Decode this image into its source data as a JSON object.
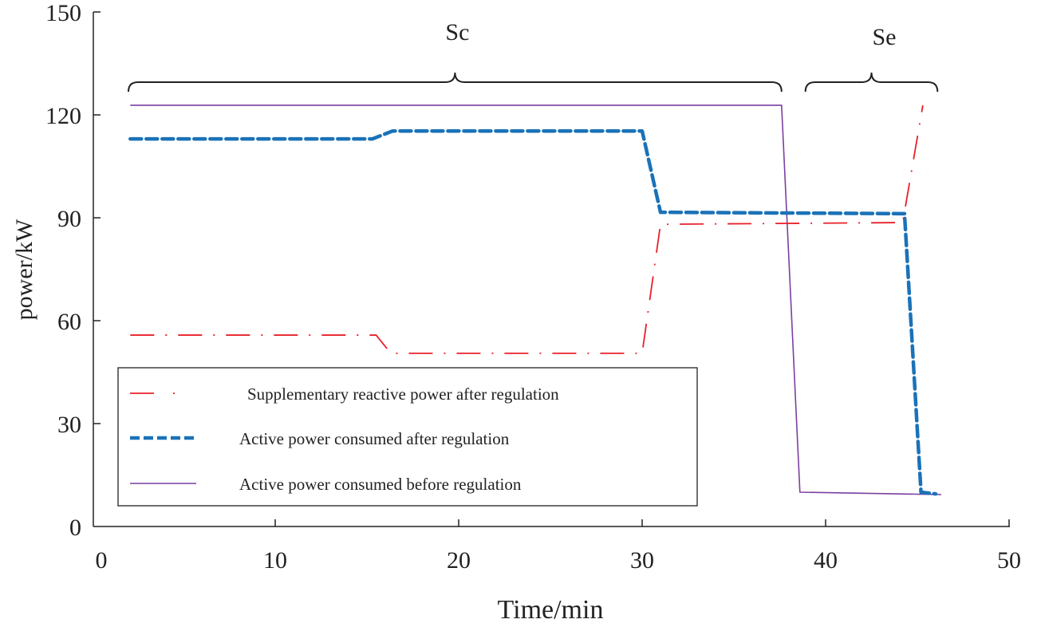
{
  "chart_data": {
    "type": "line",
    "title": "",
    "xlabel": "Time/min",
    "ylabel": "power/kW",
    "xlim": [
      0,
      50
    ],
    "ylim": [
      0,
      150
    ],
    "xticks": [
      0,
      10,
      20,
      30,
      40,
      50
    ],
    "yticks": [
      0,
      30,
      60,
      90,
      120,
      150
    ],
    "grid": false,
    "legend_placement": "bottom-left",
    "series": [
      {
        "name": "Supplementary reactive power after regulation",
        "color": "#e8202a",
        "style": "dash-dot",
        "x": [
          2.1,
          15.5,
          16.3,
          30.0,
          31.0,
          44.2,
          45.3
        ],
        "y": [
          55.8,
          55.8,
          50.5,
          50.5,
          88.1,
          88.6,
          122.8
        ]
      },
      {
        "name": "Active power consumed after regulation",
        "color": "#1a72b8",
        "style": "dashed",
        "x": [
          2.1,
          15.3,
          16.4,
          30.0,
          31.0,
          44.3,
          45.2,
          46.0
        ],
        "y": [
          113.0,
          113.0,
          115.3,
          115.3,
          91.6,
          91.2,
          10.0,
          9.5
        ]
      },
      {
        "name": "Active power consumed before regulation",
        "color": "#7b3fa0",
        "style": "solid",
        "x": [
          2.1,
          37.6,
          38.6,
          46.3
        ],
        "y": [
          122.8,
          122.8,
          10.0,
          9.3
        ]
      }
    ],
    "annotations": [
      {
        "label": "Sc",
        "x_start": 2.0,
        "x_end": 37.6
      },
      {
        "label": "Se",
        "x_start": 38.9,
        "x_end": 46.1
      }
    ]
  }
}
